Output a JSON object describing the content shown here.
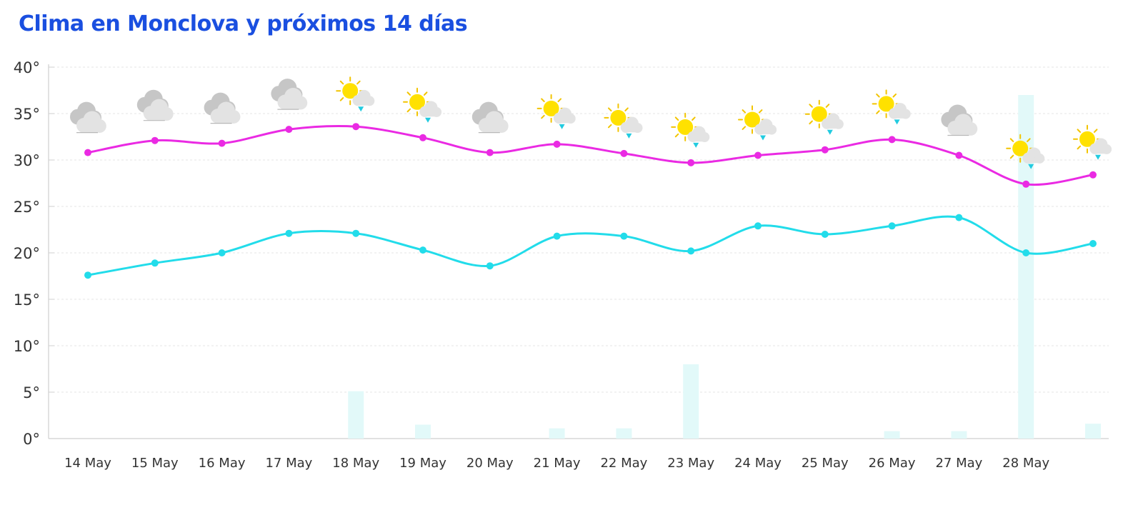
{
  "title": "Clima en Monclova y próximos 14 días",
  "colors": {
    "title": "#1a4fe0",
    "max_line": "#ea2ae3",
    "min_line": "#22dcea",
    "rain_bar": "#e2f9f9",
    "grid": "#e6e6e6",
    "axis": "#cfcfcf",
    "sun": "#ffe100",
    "sun_ray": "#f2c400",
    "cloud": "#e3e3e3",
    "cloud_dark": "#c6c6c6",
    "rain_drop": "#22cbe0"
  },
  "chart_data": {
    "type": "line",
    "title": "Clima en Monclova y próximos 14 días",
    "xlabel": "",
    "ylabel": "",
    "ylim": [
      0,
      40
    ],
    "yticks": [
      "0°",
      "5°",
      "10°",
      "15°",
      "20°",
      "25°",
      "30°",
      "35°",
      "40°"
    ],
    "ytick_values": [
      0,
      5,
      10,
      15,
      20,
      25,
      30,
      35,
      40
    ],
    "categories": [
      "14 May",
      "15 May",
      "16 May",
      "17 May",
      "18 May",
      "19 May",
      "20 May",
      "21 May",
      "22 May",
      "23 May",
      "24 May",
      "25 May",
      "26 May",
      "27 May",
      "28 May",
      ""
    ],
    "grid": true,
    "legend": "none",
    "series": [
      {
        "key": "max",
        "type": "line",
        "values": [
          30.8,
          32.1,
          31.8,
          33.3,
          33.6,
          32.4,
          30.8,
          31.7,
          30.7,
          29.7,
          30.5,
          31.1,
          32.2,
          30.5,
          27.4,
          28.4
        ]
      },
      {
        "key": "min",
        "type": "line",
        "values": [
          17.6,
          18.9,
          20.0,
          22.1,
          22.1,
          20.3,
          18.6,
          21.8,
          21.8,
          20.2,
          22.9,
          22.0,
          22.9,
          23.8,
          20.0,
          21.0
        ]
      },
      {
        "key": "rain",
        "type": "bar",
        "values": [
          0,
          0,
          0,
          0,
          5.1,
          1.5,
          0,
          1.1,
          1.1,
          8.0,
          0,
          0,
          0.8,
          0.8,
          37.0,
          1.6
        ]
      }
    ],
    "icons": [
      "cloudy-icon",
      "cloudy-icon",
      "cloudy-icon",
      "cloudy-icon",
      "sun-cloud-rain-icon",
      "sun-cloud-rain-icon",
      "cloudy-icon",
      "sun-cloud-rain-icon",
      "sun-cloud-rain-icon",
      "sun-cloud-rain-icon",
      "sun-cloud-rain-icon",
      "sun-cloud-rain-icon",
      "sun-cloud-rain-icon",
      "cloudy-icon",
      "sun-cloud-rain-icon",
      "sun-cloud-rain-icon"
    ]
  }
}
